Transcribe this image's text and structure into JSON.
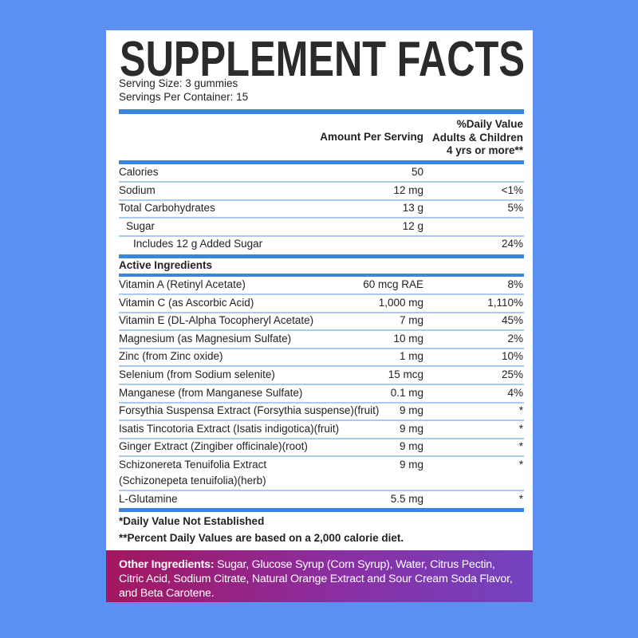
{
  "title": "SUPPLEMENT FACTS",
  "serving_size": "Serving Size: 3 gummies",
  "servings_per_container": "Servings Per Container: 15",
  "header": {
    "amount": "Amount Per Serving",
    "daily_value": [
      "%Daily Value",
      "Adults & Children",
      "4 yrs or more**"
    ]
  },
  "nutrients": [
    {
      "name": "Calories",
      "amount": "50"
    },
    {
      "name": "Sodium",
      "amount": "12 mg",
      "dv": "<1%"
    },
    {
      "name": "Total Carbohydrates",
      "amount": "13 g",
      "dv": "5%",
      "sub": [
        {
          "name": "Sugar",
          "amount": "12 g",
          "sub": [
            {
              "name": "Includes 12 g Added Sugar",
              "dv": "24%"
            }
          ]
        }
      ]
    }
  ],
  "active_heading": "Active Ingredients",
  "ingredients": [
    {
      "name": "Vitamin A (Retinyl Acetate)",
      "amount": "60 mcg RAE",
      "dv": "8%"
    },
    {
      "name": "Vitamin C (as Ascorbic Acid)",
      "amount": "1,000 mg",
      "dv": "1,110%"
    },
    {
      "name": "Vitamin E (DL-Alpha Tocopheryl Acetate)",
      "amount": "7 mg",
      "dv": "45%"
    },
    {
      "name": "Magnesium (as Magnesium Sulfate)",
      "amount": "10 mg",
      "dv": "2%"
    },
    {
      "name": "Zinc (from Zinc oxide)",
      "amount": "1 mg",
      "dv": "10%"
    },
    {
      "name": "Selenium (from Sodium selenite)",
      "amount": "15 mcg",
      "dv": "25%"
    },
    {
      "name": "Manganese (from Manganese Sulfate)",
      "amount": "0.1 mg",
      "dv": "4%"
    },
    {
      "name": "Forsythia Suspensa Extract (Forsythia suspense)(fruit)",
      "amount": "9 mg",
      "dv": "*"
    },
    {
      "name": "Isatis Tincotoria Extract (Isatis indigotica)(fruit)",
      "amount": "9 mg",
      "dv": "*"
    },
    {
      "name": "Ginger Extract (Zingiber officinale)(root)",
      "amount": "9 mg",
      "dv": "*"
    },
    {
      "name": [
        "Schizonereta Tenuifolia Extract",
        "(Schizonepeta tenuifolia)(herb)"
      ],
      "amount": "9 mg",
      "dv": "*"
    },
    {
      "name": "L-Glutamine",
      "amount": "5.5 mg",
      "dv": "*"
    }
  ],
  "footnotes": [
    "*Daily Value Not Established",
    "**Percent Daily Values are based on a 2,000 calorie diet."
  ],
  "other_ingredients": {
    "label": "Other Ingredients:",
    "text": "Sugar, Glucose Syrup (Corn Syrup), Water, Citrus Pectin, Citric Acid, Sodium Citrate, Natural Orange Extract and Sour Cream Soda Flavor, and Beta Carotene."
  }
}
